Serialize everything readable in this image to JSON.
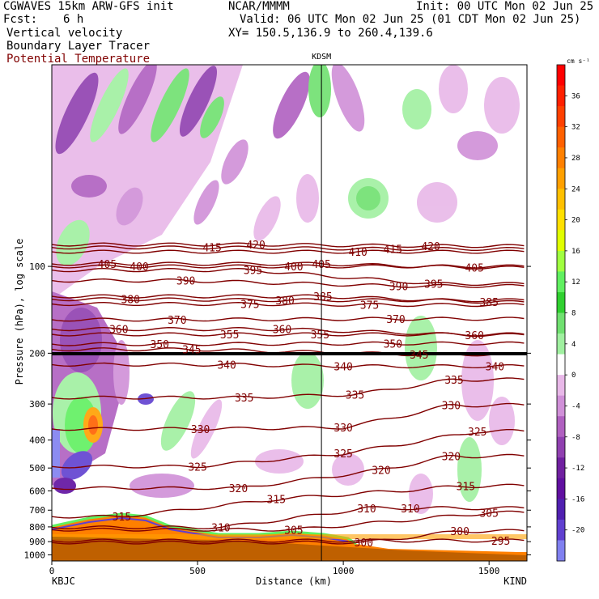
{
  "header": {
    "model": "CGWAVES 15km ARW-GFS init",
    "fcst_label": "Fcst:",
    "fcst_value": "6 h",
    "org": "NCAR/MMMM",
    "init": "Init: 00 UTC Mon 02 Jun 25",
    "valid": "Valid: 06 UTC Mon 02 Jun 25 (01 CDT Mon 02 Jun 25)",
    "xy": "XY= 150.5,136.9 to 260.4,139.6",
    "field1": "Vertical velocity",
    "field2": "Boundary Layer Tracer",
    "field3": "Potential Temperature"
  },
  "colors": {
    "theta": "#800000",
    "title3": "#800000"
  },
  "chart_data": {
    "type": "heatmap",
    "ylabel": "Pressure (hPa), log scale",
    "xlabel": "Distance (km)",
    "x_ticks": [
      "0",
      "500",
      "1000",
      "1500"
    ],
    "x_tick_values": [
      0,
      500,
      1000,
      1500
    ],
    "y_ticks": [
      "100",
      "200",
      "300",
      "400",
      "500",
      "600",
      "700",
      "800",
      "900",
      "1000"
    ],
    "y_tick_values": [
      100,
      200,
      300,
      400,
      500,
      600,
      700,
      800,
      900,
      1000
    ],
    "xlim": [
      0,
      1630
    ],
    "ylim": [
      1050,
      20
    ],
    "y_scale": "log",
    "left_station": "KBJC",
    "right_station": "KIND",
    "marker_station": "KDSM",
    "marker_x": 925,
    "colorbar": {
      "unit": "cm s⁻¹",
      "ticks": [
        "36",
        "32",
        "28",
        "24",
        "20",
        "16",
        "12",
        "8",
        "4",
        "0",
        "-4",
        "-8",
        "-12",
        "-16",
        "-20"
      ],
      "tick_values": [
        36,
        32,
        28,
        24,
        20,
        16,
        12,
        8,
        4,
        0,
        -4,
        -8,
        -12,
        -16,
        -20
      ],
      "colors": [
        "#ff0000",
        "#ff2000",
        "#ff4000",
        "#ff6000",
        "#ff8000",
        "#ffa000",
        "#ffc000",
        "#ffe000",
        "#e0ff00",
        "#a0ff40",
        "#60f060",
        "#30d030",
        "#70e070",
        "#a0f0a0",
        "#ffffff",
        "#e8b8e8",
        "#d090d8",
        "#b060c0",
        "#9040b0",
        "#7020a0",
        "#6010a0",
        "#5020b0",
        "#6040d0",
        "#8080f0"
      ]
    },
    "theta_labels": [
      {
        "t": "420",
        "x": 700,
        "p": 84
      },
      {
        "t": "415",
        "x": 550,
        "p": 86
      },
      {
        "t": "420",
        "x": 1300,
        "p": 85
      },
      {
        "t": "415",
        "x": 1170,
        "p": 87
      },
      {
        "t": "410",
        "x": 1050,
        "p": 89
      },
      {
        "t": "405",
        "x": 190,
        "p": 98
      },
      {
        "t": "400",
        "x": 300,
        "p": 100
      },
      {
        "t": "395",
        "x": 690,
        "p": 103
      },
      {
        "t": "400",
        "x": 830,
        "p": 100
      },
      {
        "t": "405",
        "x": 925,
        "p": 98
      },
      {
        "t": "405",
        "x": 1450,
        "p": 101
      },
      {
        "t": "390",
        "x": 460,
        "p": 112
      },
      {
        "t": "390",
        "x": 1190,
        "p": 117
      },
      {
        "t": "395",
        "x": 1310,
        "p": 115
      },
      {
        "t": "380",
        "x": 270,
        "p": 130
      },
      {
        "t": "375",
        "x": 680,
        "p": 135
      },
      {
        "t": "380",
        "x": 800,
        "p": 131
      },
      {
        "t": "385",
        "x": 930,
        "p": 127
      },
      {
        "t": "375",
        "x": 1090,
        "p": 136
      },
      {
        "t": "385",
        "x": 1500,
        "p": 133
      },
      {
        "t": "370",
        "x": 430,
        "p": 153
      },
      {
        "t": "370",
        "x": 1180,
        "p": 152
      },
      {
        "t": "360",
        "x": 230,
        "p": 165
      },
      {
        "t": "355",
        "x": 610,
        "p": 172
      },
      {
        "t": "360",
        "x": 790,
        "p": 165
      },
      {
        "t": "355",
        "x": 920,
        "p": 172
      },
      {
        "t": "350",
        "x": 1170,
        "p": 185
      },
      {
        "t": "360",
        "x": 1450,
        "p": 173
      },
      {
        "t": "350",
        "x": 370,
        "p": 186
      },
      {
        "t": "345",
        "x": 480,
        "p": 194
      },
      {
        "t": "345",
        "x": 1260,
        "p": 202
      },
      {
        "t": "340",
        "x": 600,
        "p": 219
      },
      {
        "t": "340",
        "x": 1000,
        "p": 222
      },
      {
        "t": "340",
        "x": 1520,
        "p": 222
      },
      {
        "t": "335",
        "x": 1380,
        "p": 247
      },
      {
        "t": "335",
        "x": 660,
        "p": 285
      },
      {
        "t": "335",
        "x": 1040,
        "p": 278
      },
      {
        "t": "330",
        "x": 1370,
        "p": 303
      },
      {
        "t": "330",
        "x": 510,
        "p": 366
      },
      {
        "t": "330",
        "x": 1000,
        "p": 362
      },
      {
        "t": "325",
        "x": 1460,
        "p": 373
      },
      {
        "t": "325",
        "x": 1000,
        "p": 445
      },
      {
        "t": "320",
        "x": 1370,
        "p": 455
      },
      {
        "t": "325",
        "x": 500,
        "p": 494
      },
      {
        "t": "320",
        "x": 1130,
        "p": 507
      },
      {
        "t": "320",
        "x": 640,
        "p": 587
      },
      {
        "t": "315",
        "x": 1420,
        "p": 577
      },
      {
        "t": "315",
        "x": 770,
        "p": 641
      },
      {
        "t": "310",
        "x": 1080,
        "p": 689
      },
      {
        "t": "310",
        "x": 1230,
        "p": 689
      },
      {
        "t": "305",
        "x": 1500,
        "p": 714
      },
      {
        "t": "315",
        "x": 240,
        "p": 737
      },
      {
        "t": "310",
        "x": 580,
        "p": 803
      },
      {
        "t": "305",
        "x": 830,
        "p": 818
      },
      {
        "t": "300",
        "x": 1400,
        "p": 827
      },
      {
        "t": "300",
        "x": 1070,
        "p": 906
      },
      {
        "t": "295",
        "x": 1540,
        "p": 893
      }
    ]
  }
}
